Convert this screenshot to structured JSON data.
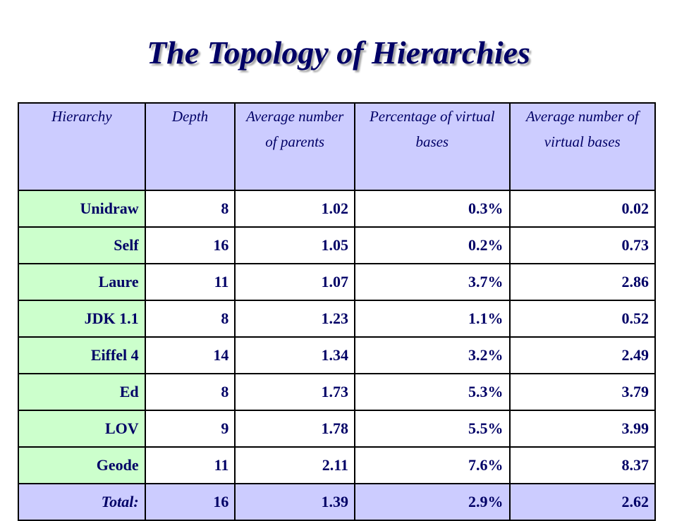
{
  "title": "The Topology of Hierarchies",
  "table": {
    "headers": [
      "Hierarchy",
      "Depth",
      "Average number of parents",
      "Percentage of virtual bases",
      "Average number of virtual bases"
    ],
    "rows": [
      [
        "Unidraw",
        "8",
        "1.02",
        "0.3%",
        "0.02"
      ],
      [
        "Self",
        "16",
        "1.05",
        "0.2%",
        "0.73"
      ],
      [
        "Laure",
        "11",
        "1.07",
        "3.7%",
        "2.86"
      ],
      [
        "JDK 1.1",
        "8",
        "1.23",
        "1.1%",
        "0.52"
      ],
      [
        "Eiffel 4",
        "14",
        "1.34",
        "3.2%",
        "2.49"
      ],
      [
        "Ed",
        "8",
        "1.73",
        "5.3%",
        "3.79"
      ],
      [
        "LOV",
        "9",
        "1.78",
        "5.5%",
        "3.99"
      ],
      [
        "Geode",
        "11",
        "2.11",
        "7.6%",
        "8.37"
      ]
    ],
    "total": [
      "Total:",
      "16",
      "1.39",
      "2.9%",
      "2.62"
    ]
  },
  "colors": {
    "header_bg": "#ccccff",
    "name_bg": "#ccffcc",
    "text": "#000066"
  }
}
